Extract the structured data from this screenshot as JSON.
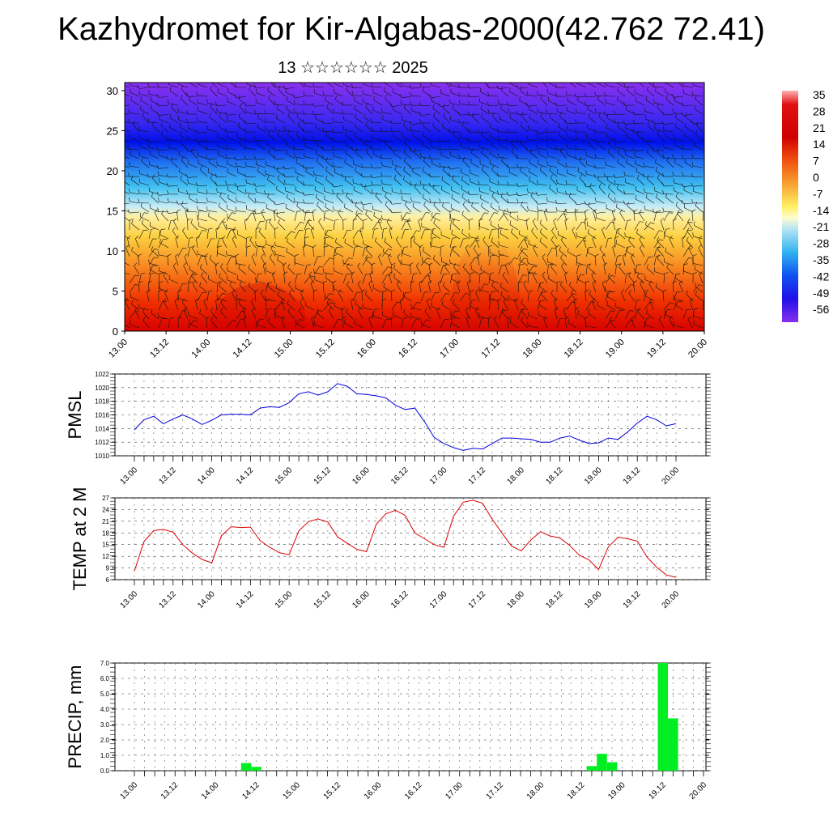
{
  "header": {
    "title": "Kazhydromet for Kir-Algabas-2000(42.762 72.41)",
    "subtitle": "13 ☆☆☆☆☆☆ 2025"
  },
  "chart_data": [
    {
      "type": "heatmap",
      "name": "temperature cross-section with wind barbs",
      "x_tick_labels": [
        "13.00",
        "13.12",
        "14.00",
        "14.12",
        "15.00",
        "15.12",
        "16.00",
        "16.12",
        "17.00",
        "17.12",
        "18.00",
        "18.12",
        "19.00",
        "19.12",
        "20.00"
      ],
      "y_ticks": [
        0,
        5,
        10,
        15,
        20,
        25,
        30
      ],
      "ylim": [
        0,
        31
      ],
      "colorbar_labels": [
        "35",
        "28",
        "21",
        "14",
        "7",
        "0",
        "-7",
        "-14",
        "-21",
        "-28",
        "-35",
        "-42",
        "-49",
        "-56"
      ],
      "colors": {
        "hot": "#e00000",
        "warm": "#f5a030",
        "mild": "#fff060",
        "cool": "#40c8f0",
        "cold": "#0018ee",
        "coldest": "#8a30f0"
      }
    },
    {
      "type": "line",
      "name": "pmsl",
      "ylabel": "PMSL",
      "ylim": [
        1010,
        1022
      ],
      "y_ticks": [
        1010,
        1012,
        1014,
        1016,
        1018,
        1020,
        1022
      ],
      "x_tick_labels": [
        "13.00",
        "13.12",
        "14.00",
        "14.12",
        "15.00",
        "15.12",
        "16.00",
        "16.12",
        "17.00",
        "17.12",
        "18.00",
        "18.12",
        "19.00",
        "19.12",
        "20.00"
      ],
      "color": "#0000dd",
      "values": [
        1013.8,
        1015.3,
        1015.8,
        1014.7,
        1015.4,
        1016.0,
        1015.4,
        1014.6,
        1015.2,
        1016.0,
        1016.1,
        1016.1,
        1016.0,
        1017.0,
        1017.2,
        1017.1,
        1017.8,
        1019.1,
        1019.4,
        1018.9,
        1019.4,
        1020.6,
        1020.2,
        1019.1,
        1019.0,
        1018.8,
        1018.5,
        1017.4,
        1016.8,
        1017.0,
        1015.0,
        1012.7,
        1011.8,
        1011.2,
        1010.8,
        1011.1,
        1011.0,
        1011.8,
        1012.6,
        1012.6,
        1012.5,
        1012.4,
        1012.0,
        1012.0,
        1012.6,
        1012.9,
        1012.3,
        1011.8,
        1011.9,
        1012.6,
        1012.4,
        1013.5,
        1014.8,
        1015.8,
        1015.3,
        1014.4,
        1014.7
      ]
    },
    {
      "type": "line",
      "name": "temperature-2m",
      "ylabel": "TEMP at 2 M",
      "ylim": [
        6,
        27
      ],
      "y_ticks": [
        6,
        9,
        12,
        15,
        18,
        21,
        24,
        27
      ],
      "x_tick_labels": [
        "13.00",
        "13.12",
        "14.00",
        "14.12",
        "15.00",
        "15.12",
        "16.00",
        "16.12",
        "17.00",
        "17.12",
        "18.00",
        "18.12",
        "19.00",
        "19.12",
        "20.00"
      ],
      "color": "#dd0000",
      "values": [
        8.2,
        15.8,
        18.6,
        18.9,
        18.2,
        15.0,
        12.8,
        11.2,
        10.3,
        17.3,
        19.6,
        19.4,
        19.5,
        16.0,
        14.3,
        12.9,
        12.4,
        18.5,
        20.9,
        21.6,
        20.8,
        17.0,
        15.4,
        13.8,
        13.2,
        20.2,
        22.9,
        23.8,
        22.5,
        18.0,
        16.5,
        15.0,
        14.3,
        22.3,
        25.9,
        26.4,
        25.6,
        21.5,
        18.0,
        14.6,
        13.4,
        16.2,
        18.3,
        17.2,
        16.7,
        14.8,
        12.3,
        11.1,
        8.6,
        14.4,
        16.9,
        16.5,
        15.9,
        11.8,
        9.2,
        7.2,
        6.6
      ]
    },
    {
      "type": "bar",
      "name": "precipitation",
      "ylabel": "PRECIP, mm",
      "ylim": [
        0,
        7
      ],
      "y_tick_labels": [
        "0.0",
        "1.0",
        "2.0",
        "3.0",
        "4.0",
        "5.0",
        "6.0",
        "7.0"
      ],
      "x_tick_labels": [
        "13.00",
        "13.12",
        "14.00",
        "14.12",
        "15.00",
        "15.12",
        "16.00",
        "16.12",
        "17.00",
        "17.12",
        "18.00",
        "18.12",
        "19.00",
        "19.12",
        "20.00"
      ],
      "color": "#00ee22",
      "bars": [
        {
          "x": 11,
          "value": 0.5
        },
        {
          "x": 12,
          "value": 0.25
        },
        {
          "x": 45,
          "value": 0.3
        },
        {
          "x": 46,
          "value": 1.1
        },
        {
          "x": 47,
          "value": 0.55
        },
        {
          "x": 52,
          "value": 7.0
        },
        {
          "x": 53,
          "value": 3.4
        }
      ]
    }
  ]
}
